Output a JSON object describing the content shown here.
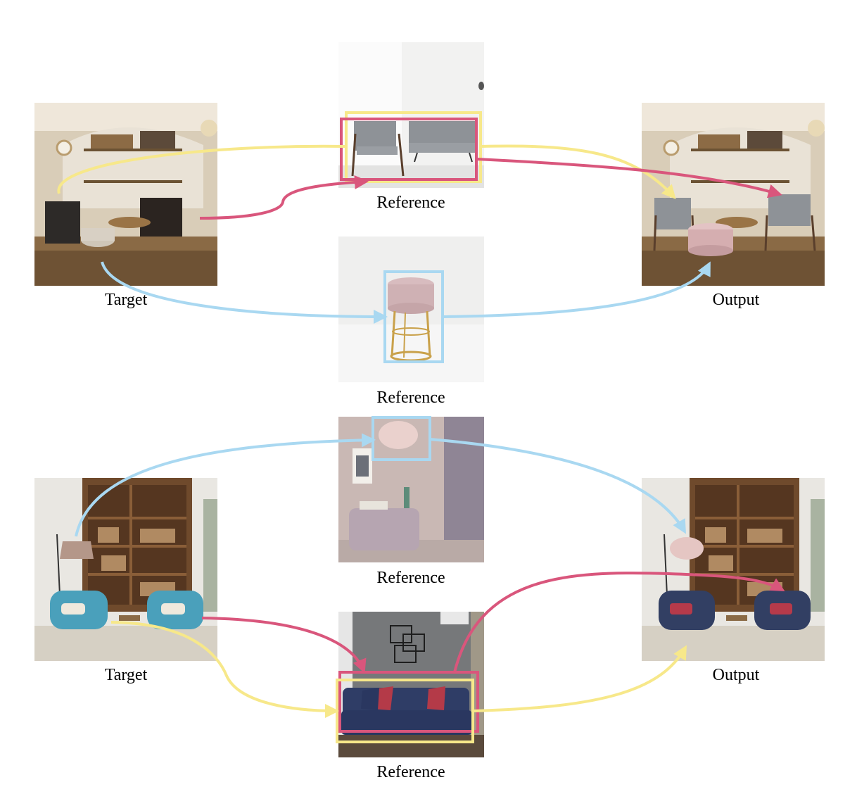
{
  "labels": {
    "target": "Target",
    "reference": "Reference",
    "output": "Output"
  },
  "colors": {
    "yellow": "#f7e88a",
    "pink": "#d9567c",
    "blue": "#a9d8f1"
  },
  "examples": [
    {
      "target_caption": "Target",
      "output_caption": "Output",
      "references": [
        {
          "caption": "Reference",
          "objects": [
            "armchair",
            "sofa"
          ]
        },
        {
          "caption": "Reference",
          "objects": [
            "pink ottoman stool"
          ]
        }
      ]
    },
    {
      "target_caption": "Target",
      "output_caption": "Output",
      "references": [
        {
          "caption": "Reference",
          "objects": [
            "feather pendant lamp"
          ]
        },
        {
          "caption": "Reference",
          "objects": [
            "navy sofa with red pillows"
          ]
        }
      ]
    }
  ]
}
